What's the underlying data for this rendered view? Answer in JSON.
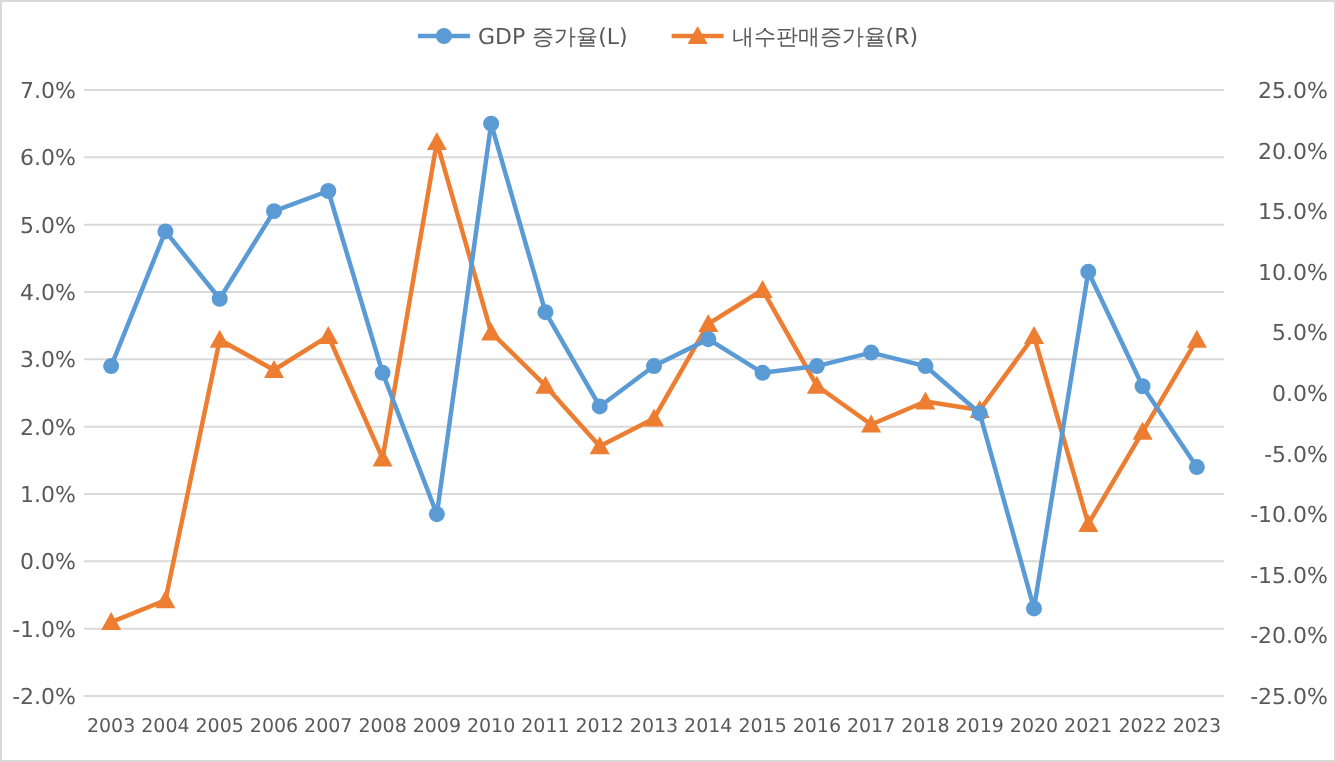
{
  "chart_data": {
    "type": "line",
    "categories": [
      "2003",
      "2004",
      "2005",
      "2006",
      "2007",
      "2008",
      "2009",
      "2010",
      "2011",
      "2012",
      "2013",
      "2014",
      "2015",
      "2016",
      "2017",
      "2018",
      "2019",
      "2020",
      "2021",
      "2022",
      "2023"
    ],
    "series": [
      {
        "name": "GDP 증가율(L)",
        "color": "#5b9bd5",
        "marker": "circle",
        "axis": "y",
        "values": [
          2.9,
          4.9,
          3.9,
          5.2,
          5.5,
          2.8,
          0.7,
          6.5,
          3.7,
          2.3,
          2.9,
          3.3,
          2.8,
          2.9,
          3.1,
          2.9,
          2.2,
          -0.7,
          4.3,
          2.6,
          1.4
        ]
      },
      {
        "name": "내수판매증가율(R)",
        "color": "#ed7d31",
        "marker": "triangle",
        "axis": "y2",
        "values": [
          -18.9,
          -17.1,
          4.4,
          1.9,
          4.7,
          -5.4,
          20.7,
          5.0,
          0.6,
          -4.4,
          -2.1,
          5.7,
          8.5,
          0.6,
          -2.6,
          -0.7,
          -1.4,
          4.7,
          -10.8,
          -3.2,
          4.4
        ]
      }
    ],
    "ylim": [
      -2,
      7
    ],
    "yticks": [
      {
        "value": -2,
        "label": "-2.0%"
      },
      {
        "value": -1,
        "label": "-1.0%"
      },
      {
        "value": 0,
        "label": "0.0%"
      },
      {
        "value": 1,
        "label": "1.0%"
      },
      {
        "value": 2,
        "label": "2.0%"
      },
      {
        "value": 3,
        "label": "3.0%"
      },
      {
        "value": 4,
        "label": "4.0%"
      },
      {
        "value": 5,
        "label": "5.0%"
      },
      {
        "value": 6,
        "label": "6.0%"
      },
      {
        "value": 7,
        "label": "7.0%"
      }
    ],
    "y2lim": [
      -25,
      25
    ],
    "y2ticks": [
      {
        "value": -25,
        "label": "-25.0%"
      },
      {
        "value": -20,
        "label": "-20.0%"
      },
      {
        "value": -15,
        "label": "-15.0%"
      },
      {
        "value": -10,
        "label": "-10.0%"
      },
      {
        "value": -5,
        "label": "-5.0%"
      },
      {
        "value": 0,
        "label": "0.0%"
      },
      {
        "value": 5,
        "label": "5.0%"
      },
      {
        "value": 10,
        "label": "10.0%"
      },
      {
        "value": 15,
        "label": "15.0%"
      },
      {
        "value": 20,
        "label": "20.0%"
      },
      {
        "value": 25,
        "label": "25.0%"
      }
    ],
    "grid": "y",
    "legend": "top",
    "line_style": "solid"
  }
}
